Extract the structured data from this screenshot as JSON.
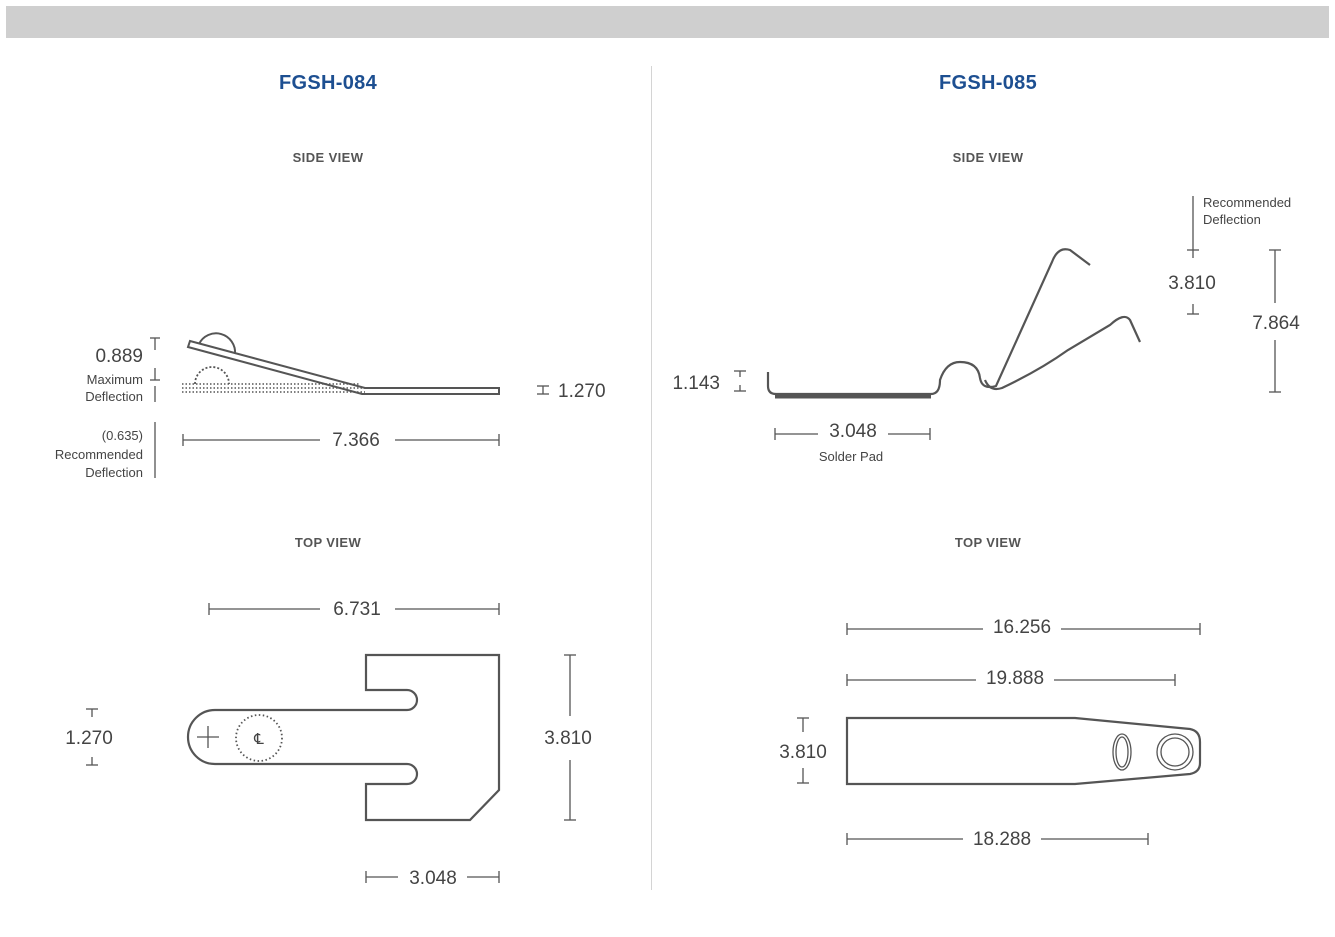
{
  "colors": {
    "topbar": "#cfcfcf",
    "title": "#1d4f91",
    "line": "#555555",
    "text": "#444444"
  },
  "left": {
    "title": "FGSH-084",
    "side_view_label": "SIDE VIEW",
    "top_view_label": "TOP VIEW",
    "side": {
      "max_value": "0.889",
      "max_label_1": "Maximum",
      "max_label_2": "Deflection",
      "rec_value": "(0.635)",
      "rec_label_1": "Recommended",
      "rec_label_2": "Deflection",
      "length": "7.366",
      "thickness": "1.270"
    },
    "top": {
      "width": "6.731",
      "height": "3.810",
      "left_dim": "1.270",
      "bottom": "3.048",
      "centerline": "℄"
    }
  },
  "right": {
    "title": "FGSH-085",
    "side_view_label": "SIDE VIEW",
    "top_view_label": "TOP VIEW",
    "side": {
      "rec_label_1": "Recommended",
      "rec_label_2": "Deflection",
      "deflection": "3.810",
      "height": "7.864",
      "pad_height": "1.143",
      "pad_width": "3.048",
      "pad_label": "Solder Pad"
    },
    "top": {
      "d1": "16.256",
      "d2": "19.888",
      "height": "3.810",
      "d3": "18.288"
    }
  }
}
